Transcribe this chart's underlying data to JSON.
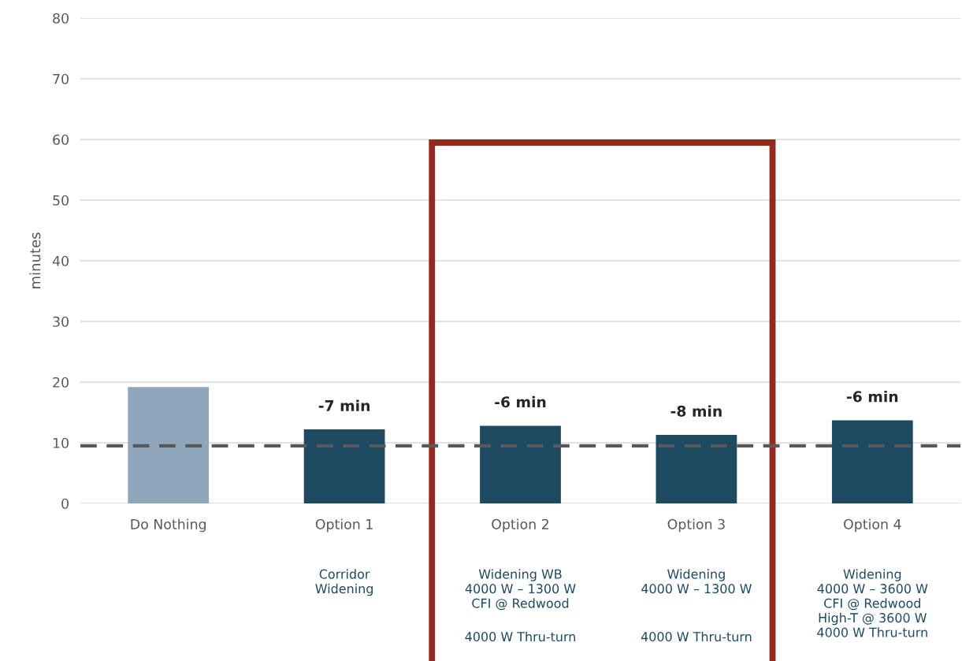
{
  "chart_data": {
    "type": "bar",
    "ylabel": "minutes",
    "categories": [
      "Do Nothing",
      "Option 1",
      "Option 2",
      "Option 3",
      "Option 4"
    ],
    "values": [
      19.2,
      12.2,
      12.8,
      11.3,
      13.7
    ],
    "colors": [
      "#8fa6bd",
      "#1d4a60",
      "#1d4a60",
      "#1d4a60",
      "#1d4a60"
    ],
    "ylim": [
      0,
      80
    ],
    "yticks": [
      0,
      10,
      20,
      30,
      40,
      50,
      60,
      70,
      80
    ],
    "grid": "y",
    "ref_lines": [
      {
        "axis": "y",
        "value": 9.5,
        "color": "#595959",
        "line_style": "dashed"
      }
    ],
    "annotations": [
      {
        "text": "-7 min",
        "x": "Option 1",
        "y": 12.2
      },
      {
        "text": "-6 min",
        "x": "Option 2",
        "y": 12.8
      },
      {
        "text": "-8 min",
        "x": "Option 3",
        "y": 11.3
      },
      {
        "text": "-6 min",
        "x": "Option 4",
        "y": 13.7
      },
      "Corridor\nWidening",
      "Widening WB\n4000 W – 1300 W\nCFI @ Redwood",
      "4000 W Thru-turn",
      "Widening\n4000 W – 1300 W",
      "4000 W Thru-turn",
      "Widening\n4000 W – 3600 W\nCFI @ Redwood\nHigh-T @ 3600 W\n4000 W Thru-turn"
    ]
  }
}
